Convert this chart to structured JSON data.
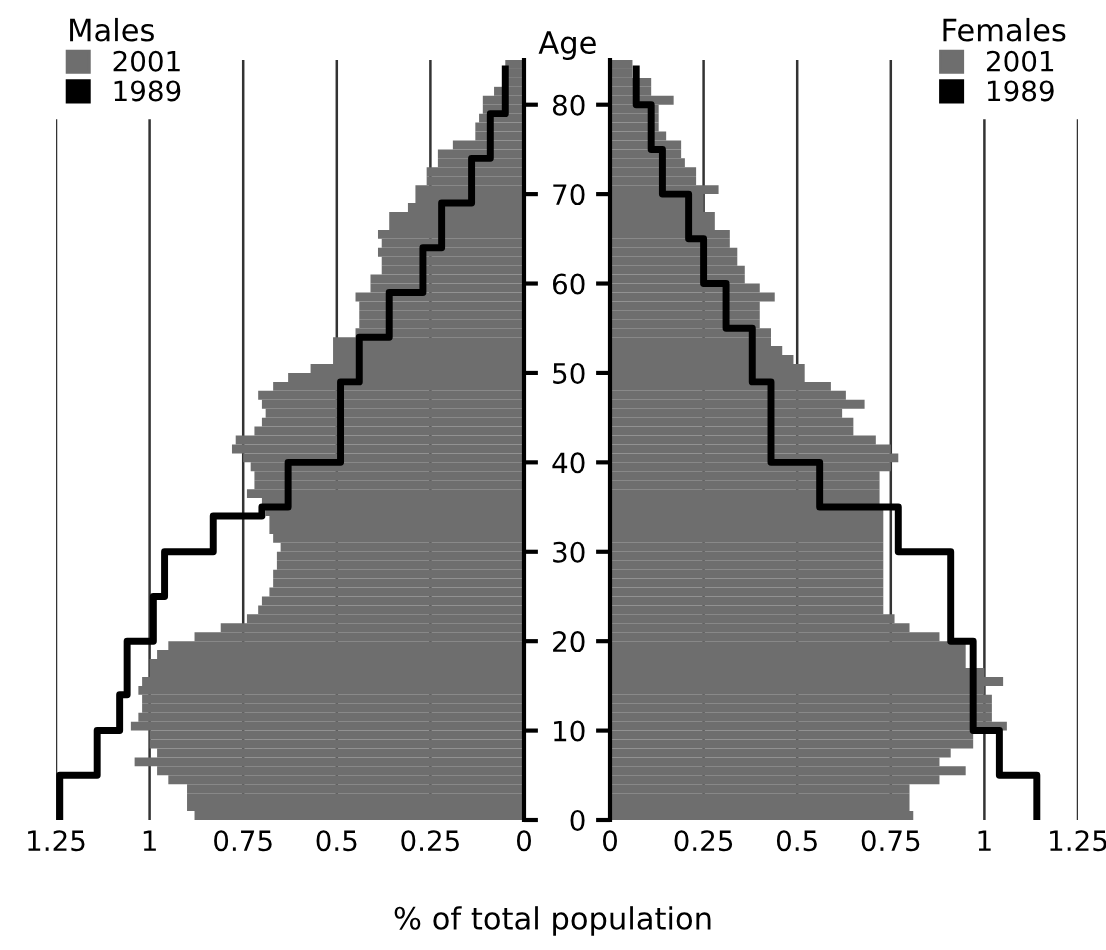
{
  "chart_data": [
    {
      "type": "bar",
      "orientation": "horizontal",
      "legend_title": "Males",
      "xlabel": "% of total population",
      "legend": "top left",
      "grid": "x",
      "tick_labels": "x",
      "x": [
        0,
        1,
        2,
        3,
        4,
        5,
        6,
        7,
        8,
        9,
        10,
        11,
        12,
        13,
        14,
        15,
        16,
        17,
        18,
        19,
        20,
        21,
        22,
        23,
        24,
        25,
        26,
        27,
        28,
        29,
        30,
        31,
        32,
        33,
        34,
        35,
        36,
        37,
        38,
        39,
        40,
        41,
        42,
        43,
        44,
        45,
        46,
        47,
        48,
        49,
        50,
        51,
        52,
        53,
        54,
        55,
        56,
        57,
        58,
        59,
        60,
        61,
        62,
        63,
        64,
        65,
        66,
        67,
        68,
        69,
        70,
        71,
        72,
        73,
        74,
        75,
        76,
        77,
        78,
        79,
        80,
        81,
        82,
        83,
        84
      ],
      "xlim": [
        1.25,
        0
      ],
      "xticks": [
        1.25,
        1,
        0.75,
        0.5,
        0.25,
        0
      ],
      "ylim": [
        0,
        85
      ],
      "yticks": [
        0,
        10,
        20,
        30,
        40,
        50,
        60,
        70,
        80
      ],
      "series": [
        {
          "name": "2001",
          "color": "#6e6e6e",
          "values": [
            0.88,
            0.9,
            0.9,
            0.9,
            0.95,
            0.98,
            1.04,
            0.98,
            1.0,
            1.0,
            1.05,
            1.03,
            1.02,
            1.02,
            1.03,
            1.02,
            1.0,
            1.0,
            0.98,
            0.95,
            0.88,
            0.81,
            0.74,
            0.71,
            0.7,
            0.68,
            0.67,
            0.67,
            0.66,
            0.66,
            0.65,
            0.67,
            0.68,
            0.68,
            0.69,
            0.7,
            0.74,
            0.72,
            0.72,
            0.73,
            0.75,
            0.78,
            0.77,
            0.72,
            0.7,
            0.69,
            0.7,
            0.71,
            0.67,
            0.63,
            0.57,
            0.51,
            0.51,
            0.51,
            0.45,
            0.44,
            0.44,
            0.44,
            0.45,
            0.41,
            0.41,
            0.38,
            0.38,
            0.39,
            0.38,
            0.39,
            0.36,
            0.36,
            0.31,
            0.29,
            0.29,
            0.26,
            0.26,
            0.23,
            0.23,
            0.19,
            0.13,
            0.13,
            0.12,
            0.11,
            0.11,
            0.08,
            0.05,
            0.05,
            0.05
          ]
        },
        {
          "name": "1989",
          "type": "step",
          "color": "#000000",
          "values": [
            1.24,
            1.24,
            1.24,
            1.24,
            1.24,
            1.14,
            1.14,
            1.14,
            1.14,
            1.14,
            1.08,
            1.08,
            1.08,
            1.08,
            1.06,
            1.06,
            1.06,
            1.06,
            1.06,
            1.06,
            0.99,
            0.99,
            0.99,
            0.99,
            0.99,
            0.96,
            0.96,
            0.96,
            0.96,
            0.96,
            0.83,
            0.83,
            0.83,
            0.83,
            0.7,
            0.63,
            0.63,
            0.63,
            0.63,
            0.63,
            0.49,
            0.49,
            0.49,
            0.49,
            0.49,
            0.49,
            0.49,
            0.49,
            0.49,
            0.44,
            0.44,
            0.44,
            0.44,
            0.44,
            0.36,
            0.36,
            0.36,
            0.36,
            0.36,
            0.27,
            0.27,
            0.27,
            0.27,
            0.27,
            0.22,
            0.22,
            0.22,
            0.22,
            0.22,
            0.14,
            0.14,
            0.14,
            0.14,
            0.14,
            0.09,
            0.09,
            0.09,
            0.09,
            0.09,
            0.05,
            0.05,
            0.05,
            0.05,
            0.05,
            0.05
          ]
        }
      ]
    },
    {
      "type": "bar",
      "orientation": "horizontal",
      "legend_title": "Females",
      "ylabel": "Age",
      "legend": "top right",
      "grid": "x",
      "x": [
        0,
        1,
        2,
        3,
        4,
        5,
        6,
        7,
        8,
        9,
        10,
        11,
        12,
        13,
        14,
        15,
        16,
        17,
        18,
        19,
        20,
        21,
        22,
        23,
        24,
        25,
        26,
        27,
        28,
        29,
        30,
        31,
        32,
        33,
        34,
        35,
        36,
        37,
        38,
        39,
        40,
        41,
        42,
        43,
        44,
        45,
        46,
        47,
        48,
        49,
        50,
        51,
        52,
        53,
        54,
        55,
        56,
        57,
        58,
        59,
        60,
        61,
        62,
        63,
        64,
        65,
        66,
        67,
        68,
        69,
        70,
        71,
        72,
        73,
        74,
        75,
        76,
        77,
        78,
        79,
        80,
        81,
        82,
        83,
        84
      ],
      "xlim": [
        0,
        1.25
      ],
      "xticks": [
        0,
        0.25,
        0.5,
        0.75,
        1,
        1.25
      ],
      "ylim": [
        0,
        85
      ],
      "yticks": [
        0,
        10,
        20,
        30,
        40,
        50,
        60,
        70,
        80
      ],
      "series": [
        {
          "name": "2001",
          "color": "#6e6e6e",
          "values": [
            0.81,
            0.8,
            0.8,
            0.8,
            0.88,
            0.95,
            0.88,
            0.91,
            0.97,
            0.97,
            1.06,
            1.02,
            1.02,
            1.02,
            1.0,
            1.05,
            1.0,
            0.95,
            0.95,
            0.95,
            0.88,
            0.8,
            0.76,
            0.73,
            0.73,
            0.73,
            0.73,
            0.73,
            0.73,
            0.73,
            0.73,
            0.73,
            0.73,
            0.73,
            0.73,
            0.72,
            0.72,
            0.72,
            0.72,
            0.75,
            0.77,
            0.75,
            0.71,
            0.65,
            0.65,
            0.62,
            0.68,
            0.63,
            0.59,
            0.52,
            0.52,
            0.49,
            0.46,
            0.43,
            0.43,
            0.4,
            0.4,
            0.4,
            0.44,
            0.4,
            0.36,
            0.36,
            0.34,
            0.34,
            0.32,
            0.32,
            0.28,
            0.28,
            0.25,
            0.25,
            0.29,
            0.23,
            0.23,
            0.2,
            0.19,
            0.19,
            0.15,
            0.13,
            0.13,
            0.13,
            0.17,
            0.11,
            0.11,
            0.06,
            0.06
          ]
        },
        {
          "name": "1989",
          "type": "step",
          "color": "#000000",
          "values": [
            1.14,
            1.14,
            1.14,
            1.14,
            1.14,
            1.04,
            1.04,
            1.04,
            1.04,
            1.04,
            0.97,
            0.97,
            0.97,
            0.97,
            0.97,
            0.97,
            0.97,
            0.97,
            0.97,
            0.97,
            0.91,
            0.91,
            0.91,
            0.91,
            0.91,
            0.91,
            0.91,
            0.91,
            0.91,
            0.91,
            0.77,
            0.77,
            0.77,
            0.77,
            0.77,
            0.56,
            0.56,
            0.56,
            0.56,
            0.56,
            0.43,
            0.43,
            0.43,
            0.43,
            0.43,
            0.43,
            0.43,
            0.43,
            0.43,
            0.38,
            0.38,
            0.38,
            0.38,
            0.38,
            0.38,
            0.31,
            0.31,
            0.31,
            0.31,
            0.31,
            0.25,
            0.25,
            0.25,
            0.25,
            0.25,
            0.21,
            0.21,
            0.21,
            0.21,
            0.21,
            0.14,
            0.14,
            0.14,
            0.14,
            0.14,
            0.11,
            0.11,
            0.11,
            0.11,
            0.11,
            0.07,
            0.07,
            0.07,
            0.07,
            0.07
          ]
        }
      ]
    }
  ]
}
